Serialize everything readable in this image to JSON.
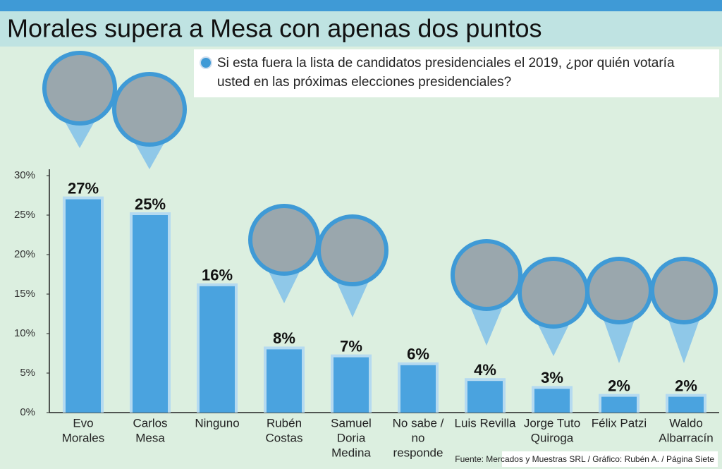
{
  "chart_data": {
    "type": "bar",
    "title": "Morales supera a Mesa con apenas dos puntos",
    "subtitle": "Si esta fuera la lista de candidatos presidenciales el 2019, ¿por quién votaría usted en las próximas elecciones presidenciales?",
    "source": "Fuente: Mercados y Muestras SRL / Gráfico: Rubén A. / Página Siete",
    "categories": [
      [
        "Evo",
        "Morales"
      ],
      [
        "Carlos",
        "Mesa"
      ],
      [
        "Ninguno"
      ],
      [
        "Rubén",
        "Costas"
      ],
      [
        "Samuel",
        "Doria",
        "Medina"
      ],
      [
        "No sabe /",
        "no",
        "responde"
      ],
      [
        "Luis Revilla"
      ],
      [
        "Jorge Tuto",
        "Quiroga"
      ],
      [
        "Félix Patzi"
      ],
      [
        "Waldo",
        "Albarracín"
      ]
    ],
    "values": [
      27,
      25,
      16,
      8,
      7,
      6,
      4,
      3,
      2,
      2
    ],
    "value_labels": [
      "27%",
      "25%",
      "16%",
      "8%",
      "7%",
      "6%",
      "4%",
      "3%",
      "2%",
      "2%"
    ],
    "color": "#4aa3df",
    "ylim": [
      0,
      30
    ],
    "yticks": [
      {
        "value": 0,
        "label": "0%"
      },
      {
        "value": 5,
        "label": "5%"
      },
      {
        "value": 10,
        "label": "10%"
      },
      {
        "value": 15,
        "label": "15%"
      },
      {
        "value": 20,
        "label": "20%"
      },
      {
        "value": 25,
        "label": "25%"
      },
      {
        "value": 30,
        "label": "30%"
      }
    ],
    "grid": false
  }
}
